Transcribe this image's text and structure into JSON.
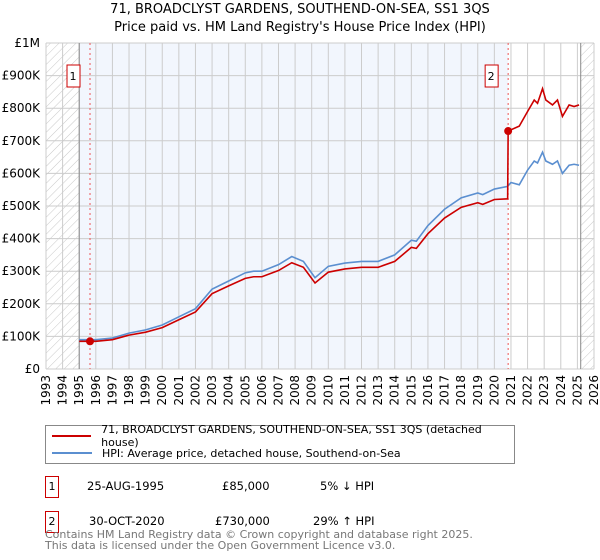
{
  "chart_data": {
    "type": "line",
    "title": "71, BROADCLYST GARDENS, SOUTHEND-ON-SEA, SS1 3QS",
    "subtitle": "Price paid vs. HM Land Registry's House Price Index (HPI)",
    "xlim": [
      1993,
      2026
    ],
    "ylim": [
      0,
      1000000
    ],
    "x_ticks": [
      "1993",
      "1994",
      "1995",
      "1996",
      "1997",
      "1998",
      "1999",
      "2000",
      "2001",
      "2002",
      "2003",
      "2004",
      "2005",
      "2006",
      "2007",
      "2008",
      "2009",
      "2010",
      "2011",
      "2012",
      "2013",
      "2014",
      "2015",
      "2016",
      "2017",
      "2018",
      "2019",
      "2020",
      "2021",
      "2022",
      "2023",
      "2024",
      "2025",
      "2026"
    ],
    "y_ticks": [
      {
        "v": 0,
        "label": "£0"
      },
      {
        "v": 100000,
        "label": "£100K"
      },
      {
        "v": 200000,
        "label": "£200K"
      },
      {
        "v": 300000,
        "label": "£300K"
      },
      {
        "v": 400000,
        "label": "£400K"
      },
      {
        "v": 500000,
        "label": "£500K"
      },
      {
        "v": 600000,
        "label": "£600K"
      },
      {
        "v": 700000,
        "label": "£700K"
      },
      {
        "v": 800000,
        "label": "£800K"
      },
      {
        "v": 900000,
        "label": "£900K"
      },
      {
        "v": 1000000,
        "label": "£1M"
      }
    ],
    "data_range": [
      1995,
      2025.2
    ],
    "grid": true,
    "series": [
      {
        "name": "71, BROADCLYST GARDENS, SOUTHEND-ON-SEA, SS1 3QS (detached house)",
        "color": "#cc0000",
        "points": [
          [
            1995,
            85000
          ],
          [
            1996,
            85000
          ],
          [
            1997,
            90000
          ],
          [
            1998,
            104000
          ],
          [
            1999,
            113000
          ],
          [
            2000,
            127000
          ],
          [
            2001,
            151000
          ],
          [
            2002,
            175000
          ],
          [
            2003,
            231000
          ],
          [
            2004,
            255000
          ],
          [
            2005,
            278000
          ],
          [
            2005.5,
            283000
          ],
          [
            2006,
            283000
          ],
          [
            2007,
            302000
          ],
          [
            2007.8,
            326000
          ],
          [
            2008.5,
            312000
          ],
          [
            2009.2,
            264000
          ],
          [
            2010,
            297000
          ],
          [
            2011,
            307000
          ],
          [
            2012,
            312000
          ],
          [
            2013,
            312000
          ],
          [
            2014,
            330000
          ],
          [
            2015,
            373000
          ],
          [
            2015.3,
            370000
          ],
          [
            2016,
            415000
          ],
          [
            2017,
            463000
          ],
          [
            2018,
            496000
          ],
          [
            2019,
            510000
          ],
          [
            2019.3,
            505000
          ],
          [
            2020,
            520000
          ],
          [
            2020.8,
            522000
          ],
          [
            2020.83,
            730000
          ],
          [
            2021.5,
            745000
          ],
          [
            2022,
            790000
          ],
          [
            2022.4,
            825000
          ],
          [
            2022.6,
            815000
          ],
          [
            2022.9,
            860000
          ],
          [
            2023.1,
            825000
          ],
          [
            2023.5,
            810000
          ],
          [
            2023.8,
            825000
          ],
          [
            2024.1,
            775000
          ],
          [
            2024.5,
            810000
          ],
          [
            2024.8,
            805000
          ],
          [
            2025.1,
            810000
          ]
        ]
      },
      {
        "name": "HPI: Average price, detached house, Southend-on-Sea",
        "color": "#5b8fd0",
        "points": [
          [
            1995,
            90000
          ],
          [
            1996,
            90000
          ],
          [
            1997,
            95000
          ],
          [
            1998,
            110000
          ],
          [
            1999,
            120000
          ],
          [
            2000,
            135000
          ],
          [
            2001,
            160000
          ],
          [
            2002,
            185000
          ],
          [
            2003,
            245000
          ],
          [
            2004,
            270000
          ],
          [
            2005,
            295000
          ],
          [
            2005.5,
            300000
          ],
          [
            2006,
            300000
          ],
          [
            2007,
            320000
          ],
          [
            2007.8,
            345000
          ],
          [
            2008.5,
            330000
          ],
          [
            2009.2,
            280000
          ],
          [
            2010,
            315000
          ],
          [
            2011,
            325000
          ],
          [
            2012,
            330000
          ],
          [
            2013,
            330000
          ],
          [
            2014,
            350000
          ],
          [
            2015,
            395000
          ],
          [
            2015.3,
            392000
          ],
          [
            2016,
            440000
          ],
          [
            2017,
            490000
          ],
          [
            2018,
            525000
          ],
          [
            2019,
            540000
          ],
          [
            2019.3,
            535000
          ],
          [
            2020,
            552000
          ],
          [
            2020.8,
            560000
          ],
          [
            2021,
            572000
          ],
          [
            2021.5,
            565000
          ],
          [
            2022,
            610000
          ],
          [
            2022.4,
            638000
          ],
          [
            2022.6,
            632000
          ],
          [
            2022.9,
            665000
          ],
          [
            2023.1,
            638000
          ],
          [
            2023.5,
            628000
          ],
          [
            2023.8,
            638000
          ],
          [
            2024.1,
            600000
          ],
          [
            2024.5,
            625000
          ],
          [
            2024.8,
            628000
          ],
          [
            2025.1,
            625000
          ]
        ]
      }
    ],
    "annotations": [
      {
        "label": "1",
        "x": 1995.65,
        "y": 85000
      },
      {
        "label": "2",
        "x": 2020.83,
        "y": 730000
      }
    ]
  },
  "legend": {
    "item1": "71, BROADCLYST GARDENS, SOUTHEND-ON-SEA, SS1 3QS (detached house)",
    "item2": "HPI: Average price, detached house, Southend-on-Sea"
  },
  "transactions": [
    {
      "num": "1",
      "date": "25-AUG-1995",
      "price": "£85,000",
      "hpi": "5% ↓ HPI"
    },
    {
      "num": "2",
      "date": "30-OCT-2020",
      "price": "£730,000",
      "hpi": "29% ↑ HPI"
    }
  ],
  "footer": {
    "line1": "Contains HM Land Registry data © Crown copyright and database right 2025.",
    "line2": "This data is licensed under the Open Government Licence v3.0."
  }
}
